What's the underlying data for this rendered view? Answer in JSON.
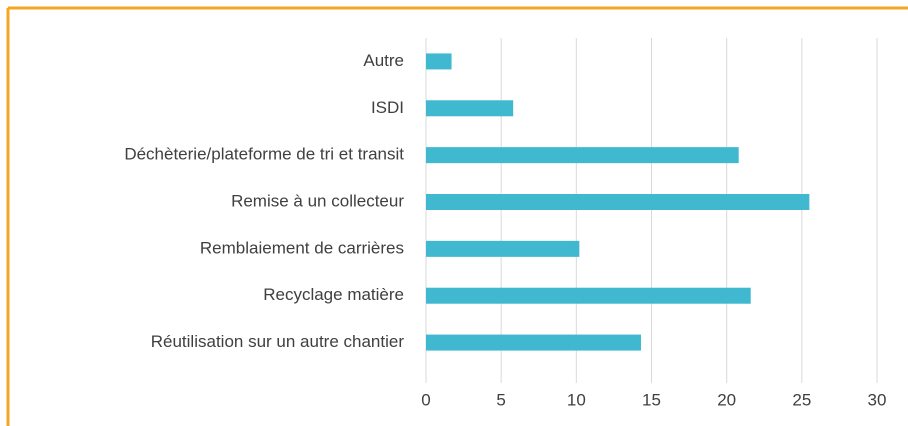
{
  "chart_data": {
    "type": "hbar",
    "categories": [
      "Autre",
      "ISDI",
      "Déchèterie/plateforme de tri et transit",
      "Remise à un collecteur",
      "Remblaiement de carrières",
      "Recyclage matière",
      "Réutilisation sur un autre chantier"
    ],
    "values": [
      1.7,
      5.8,
      20.8,
      25.5,
      10.2,
      21.6,
      14.3
    ],
    "color": "#3fb8d0",
    "xlim": [
      0,
      30
    ],
    "xticks": [
      0,
      5,
      10,
      15,
      20,
      25,
      30
    ],
    "grid": true
  }
}
